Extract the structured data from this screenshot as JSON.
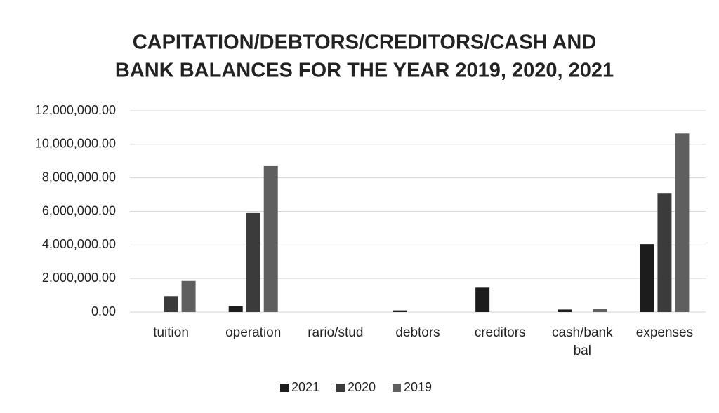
{
  "chart_data": {
    "type": "bar",
    "title": [
      "CAPITATION/DEBTORS/CREDITORS/CASH AND",
      "BANK BALANCES FOR THE YEAR 2019, 2020, 2021"
    ],
    "categories": [
      "tuition",
      "operation",
      "rario/stud",
      "debtors",
      "creditors",
      "cash/bank bal",
      "expenses"
    ],
    "series": [
      {
        "name": "2021",
        "color": "#1c1c1c",
        "values": [
          0,
          350000,
          0,
          100000,
          1450000,
          150000,
          4050000
        ]
      },
      {
        "name": "2020",
        "color": "#3b3b3b",
        "values": [
          950000,
          5900000,
          0,
          0,
          0,
          0,
          7100000
        ]
      },
      {
        "name": "2019",
        "color": "#5f5f5f",
        "values": [
          1850000,
          8700000,
          0,
          0,
          0,
          200000,
          10650000
        ]
      }
    ],
    "ylim": [
      0,
      12000000
    ],
    "yticks": [
      {
        "value": 0,
        "label": "0.00"
      },
      {
        "value": 2000000,
        "label": "2,000,000.00"
      },
      {
        "value": 4000000,
        "label": "4,000,000.00"
      },
      {
        "value": 6000000,
        "label": "6,000,000.00"
      },
      {
        "value": 8000000,
        "label": "8,000,000.00"
      },
      {
        "value": 10000000,
        "label": "10,000,000.00"
      },
      {
        "value": 12000000,
        "label": "12,000,000.00"
      }
    ],
    "grid": true,
    "legend": "bottom"
  }
}
